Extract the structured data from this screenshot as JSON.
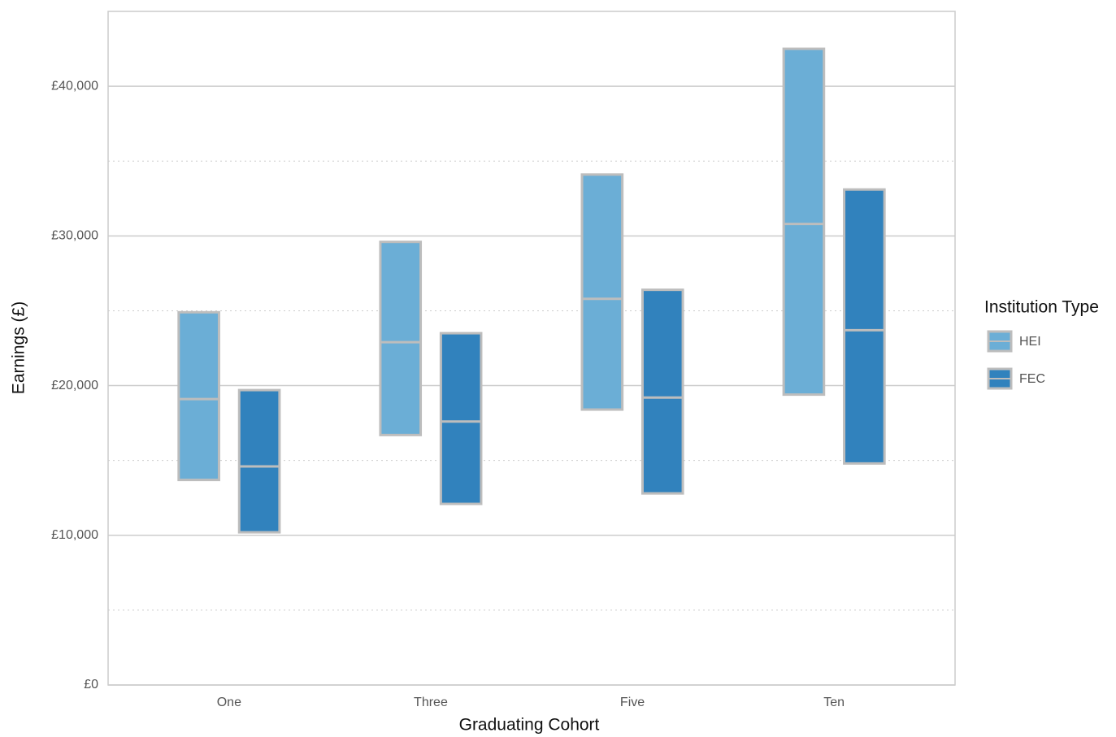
{
  "chart_data": {
    "type": "range_bar",
    "x_label": "Graduating Cohort",
    "y_label": "Earnings (£)",
    "legend_title": "Institution Type",
    "legend_position": "right",
    "categories": [
      "One",
      "Three",
      "Five",
      "Ten"
    ],
    "series": [
      {
        "name": "HEI",
        "color": "#6baed6",
        "low": [
          13700,
          16700,
          18400,
          19400
        ],
        "median": [
          19100,
          22900,
          25800,
          30800
        ],
        "high": [
          24900,
          29600,
          34100,
          42500
        ]
      },
      {
        "name": "FEC",
        "color": "#3182bd",
        "low": [
          10200,
          12100,
          12800,
          14800
        ],
        "median": [
          14600,
          17600,
          19200,
          23700
        ],
        "high": [
          19700,
          23500,
          26400,
          33100
        ]
      }
    ],
    "ylim": [
      0,
      45000
    ],
    "yticks": [
      {
        "value": 0,
        "label": "£0"
      },
      {
        "value": 10000,
        "label": "£10,000"
      },
      {
        "value": 20000,
        "label": "£20,000"
      },
      {
        "value": 30000,
        "label": "£30,000"
      },
      {
        "value": 40000,
        "label": "£40,000"
      }
    ],
    "minor_yticks": [
      5000,
      15000,
      25000,
      35000
    ],
    "grid": true
  }
}
